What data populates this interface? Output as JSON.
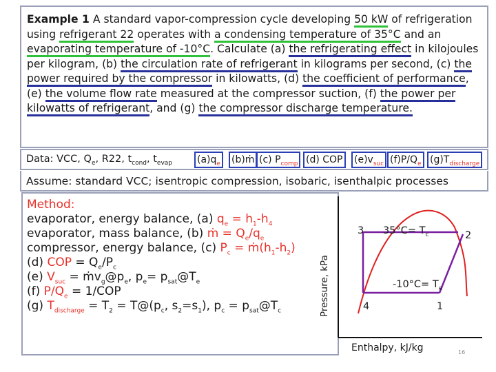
{
  "problem": {
    "title": "Example 1",
    "s1": " A standard vapor-compression cycle developing ",
    "u1": "50 kW",
    "s2": " of refrigeration using ",
    "u2": "refrigerant 22",
    "s3": " operates with ",
    "u3": "a condensing temperature of 35°C",
    "s4": " and an ",
    "u4": "evaporating temperature of -10°C",
    "s5": ". Calculate (a) ",
    "u5": "the refrigerating effect",
    "s6": " in kilojoules per kilogram, (b) ",
    "u6": "the circulation rate of refrigerant",
    "s7": " in kilograms per second, (c) ",
    "u7": "the power required by the compressor",
    "s8": " in kilowatts, (d) ",
    "u8": "the coefficient of performance",
    "s9": ", (e) ",
    "u9": "the volume flow rate",
    "s10": " measured at the compressor suction, (f) ",
    "u10": "the power per kilowatts of refrigerant",
    "s11": ", and (g) ",
    "u11": "the compressor discharge temperature."
  },
  "data_row": {
    "label": "Data:",
    "content": "VCC, Q",
    "qsub": "e",
    "sep1": ", R22, t",
    "tsub1": "cond",
    "sep2": ", t",
    "tsub2": "evap",
    "tags": {
      "a": "(a)q",
      "a_sub": "e",
      "b": "(b)ṁ",
      "c": "(c) P",
      "c_sub": "comp",
      "d": "(d) COP",
      "e": "(e)v",
      "e_sub": "suc",
      "f": "(f)P/Q",
      "f_sub": "e",
      "g": "(g)T",
      "g_sub": "discharge"
    }
  },
  "assume": "Assume: standard VCC; isentropic compression, isobaric, isenthalpic processes",
  "method": {
    "header": "Method:",
    "l1a": "evaporator, energy balance, (a) ",
    "l1b": "q",
    "l1c": "e",
    "l1d": " = h",
    "l1e": "1",
    "l1f": "-h",
    "l1g": "4",
    "l2a": "evaporator, mass balance, (b) ",
    "l2b": "ṁ = Q",
    "l2c": "e",
    "l2d": "/q",
    "l2e": "e",
    "l3a": "compressor, energy balance, (c) ",
    "l3b": "P",
    "l3c": "c",
    "l3d": " = ṁ(h",
    "l3e": "1",
    "l3f": "-h",
    "l3g": "2",
    "l3h": ")",
    "l4a": "(d) ",
    "l4b": "COP",
    "l4c": " = Q",
    "l4d": "e",
    "l4e": "/P",
    "l4f": "c",
    "l5a": "(e) ",
    "l5b": "V",
    "l5c": "suc",
    "l5d": " = ṁv",
    "l5e": "g",
    "l5f": "@p",
    "l5g": "e",
    "l5h": ", p",
    "l5i": "e",
    "l5j": "= p",
    "l5k": "sat",
    "l5l": "@T",
    "l5m": "e",
    "l6a": "(f) ",
    "l6b": "P/Q",
    "l6c": "e",
    "l6d": " = 1/COP",
    "l7a": "(g) ",
    "l7b": "T",
    "l7c": "discharge",
    "l7d": " = T",
    "l7e": "2",
    "l7f": " = T@(p",
    "l7g": "c",
    "l7h": ", s",
    "l7i": "2",
    "l7j": "=s",
    "l7k": "1",
    "l7l": "), p",
    "l7m": "c",
    "l7n": " = p",
    "l7o": "sat",
    "l7p": "@T",
    "l7q": "c"
  },
  "diagram": {
    "ylabel": "Pressure, kPa",
    "xlabel": "Enthalpy, kJ/kg",
    "pt1": "1",
    "pt2": "2",
    "pt3": "3",
    "pt4": "4",
    "cond_label": "35°C= T",
    "cond_sub": "c",
    "evap_label": "-10°C= T",
    "evap_sub": "e"
  },
  "slide_number": "16",
  "colors": {
    "green_underline": "#2fc13a",
    "blue_underline": "#27309a",
    "accent_red": "#e8312a",
    "box_blue": "#2a3fb7",
    "cycle_purple": "#7a1fa0",
    "dome_red": "#e02020"
  }
}
